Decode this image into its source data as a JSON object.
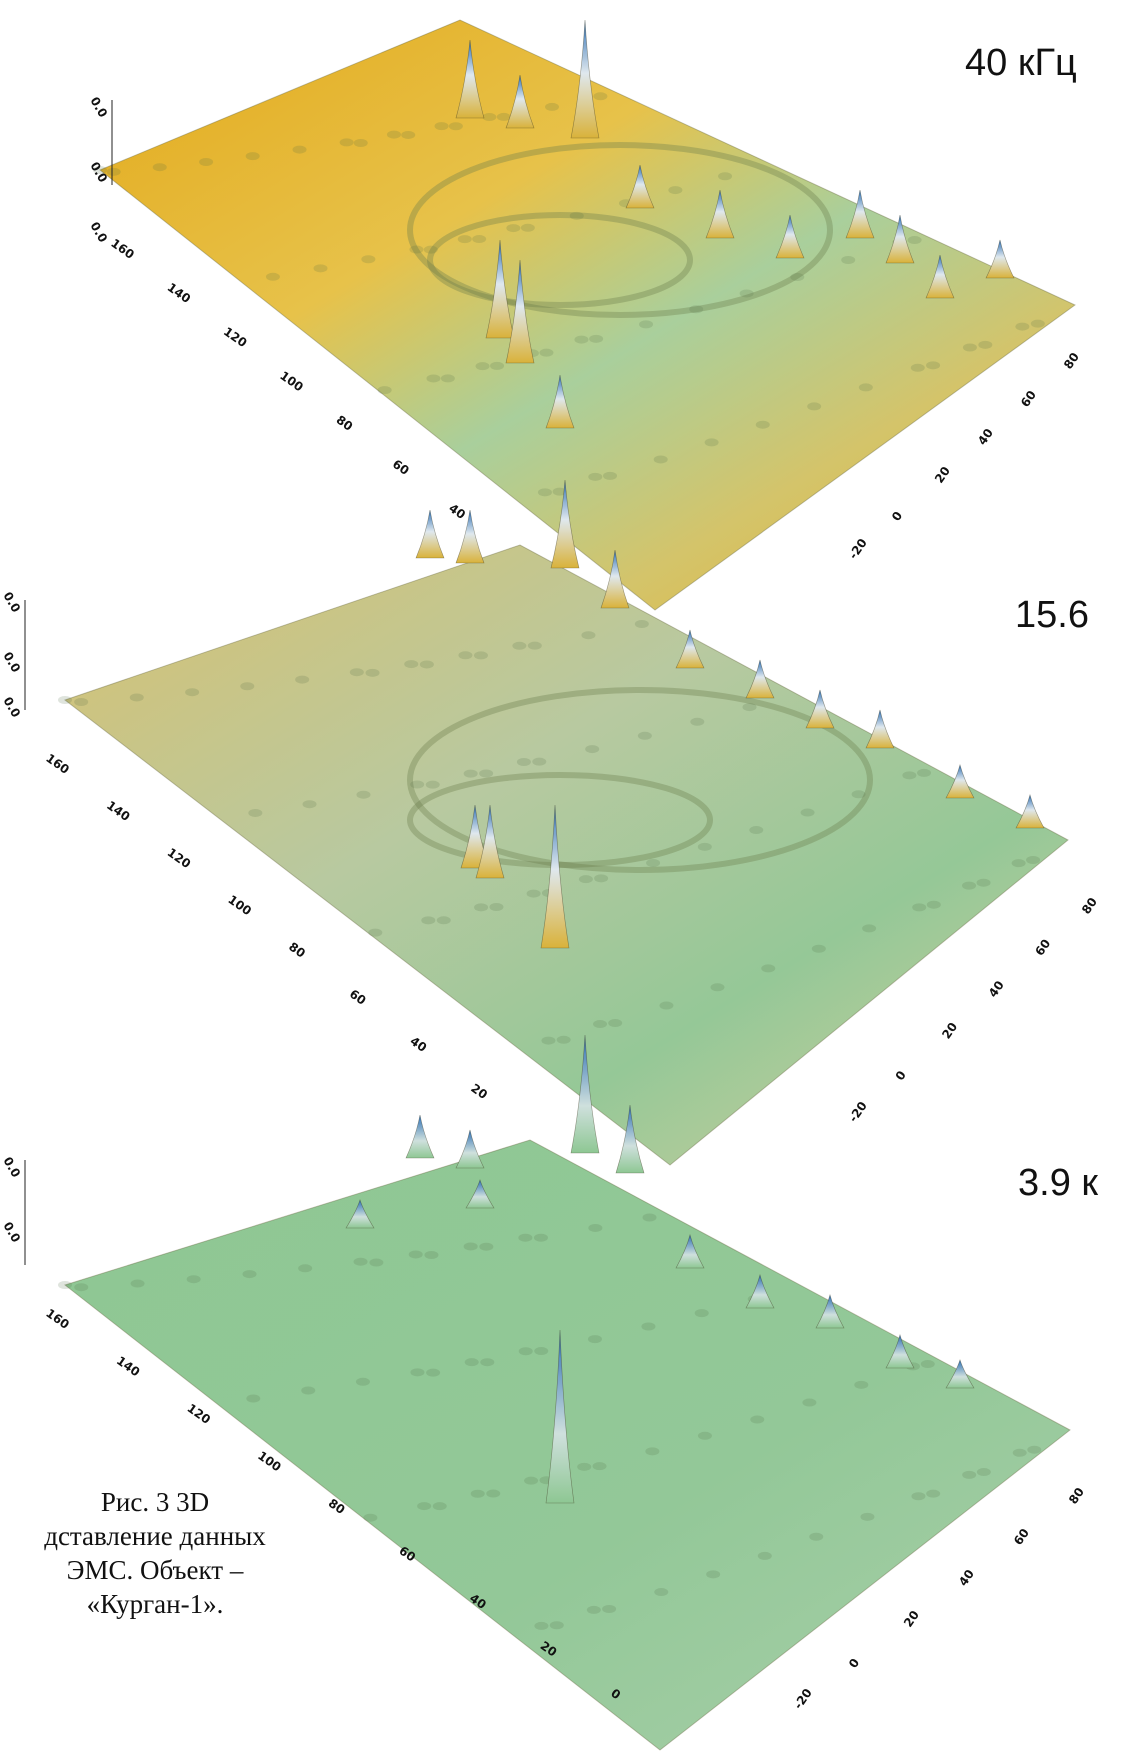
{
  "chart_data": [
    {
      "type": "surface3d",
      "label": "40 кГц",
      "x_ticks": [
        "-20",
        "0",
        "20",
        "40",
        "60",
        "80"
      ],
      "y_ticks": [
        "40",
        "60",
        "80",
        "100",
        "120",
        "140",
        "160"
      ],
      "z_ticks": [
        "0.0",
        "0.0",
        "0.0"
      ],
      "base_color": "#e0b830",
      "peak_color": "#3a7fc0",
      "low_color": "#8fc99a"
    },
    {
      "type": "surface3d",
      "label": "15.6",
      "x_ticks": [
        "-20",
        "0",
        "20",
        "40",
        "60",
        "80"
      ],
      "y_ticks": [
        "20",
        "40",
        "60",
        "80",
        "100",
        "120",
        "140",
        "160"
      ],
      "z_ticks": [
        "0.0",
        "0.0",
        "0.0"
      ],
      "base_color": "#cfc48a",
      "peak_color": "#3a7fc0",
      "low_color": "#8fc99a"
    },
    {
      "type": "surface3d",
      "label": "3.9 к",
      "x_ticks": [
        "-20",
        "0",
        "20",
        "40",
        "60",
        "80"
      ],
      "y_ticks": [
        "0",
        "20",
        "40",
        "60",
        "80",
        "100",
        "120",
        "140",
        "160"
      ],
      "z_ticks": [
        "0.0",
        "0.0"
      ],
      "base_color": "#8dc492",
      "peak_color": "#3a7fc0",
      "low_color": "#8dc492"
    }
  ],
  "caption": {
    "line1": "Рис. 3 3D",
    "line2": "дставление данных",
    "line3": "ЭМС. Объект –",
    "line4": "«Курган-1»."
  }
}
